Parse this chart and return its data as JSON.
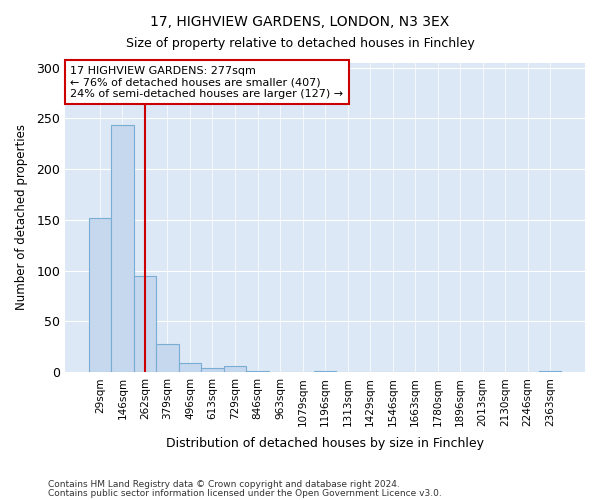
{
  "title1": "17, HIGHVIEW GARDENS, LONDON, N3 3EX",
  "title2": "Size of property relative to detached houses in Finchley",
  "xlabel": "Distribution of detached houses by size in Finchley",
  "ylabel": "Number of detached properties",
  "categories": [
    "29sqm",
    "146sqm",
    "262sqm",
    "379sqm",
    "496sqm",
    "613sqm",
    "729sqm",
    "846sqm",
    "963sqm",
    "1079sqm",
    "1196sqm",
    "1313sqm",
    "1429sqm",
    "1546sqm",
    "1663sqm",
    "1780sqm",
    "1896sqm",
    "2013sqm",
    "2130sqm",
    "2246sqm",
    "2363sqm"
  ],
  "values": [
    152,
    243,
    95,
    28,
    9,
    4,
    6,
    1,
    0,
    0,
    1,
    0,
    0,
    0,
    0,
    0,
    0,
    0,
    0,
    0,
    1
  ],
  "bar_color": "#c5d8ee",
  "bar_edge_color": "#7aadd4",
  "vline_x": 2.0,
  "vline_color": "#cc0000",
  "annotation_text": "17 HIGHVIEW GARDENS: 277sqm\n← 76% of detached houses are smaller (407)\n24% of semi-detached houses are larger (127) →",
  "annotation_box_color": "#cc0000",
  "ylim": [
    0,
    305
  ],
  "footnote1": "Contains HM Land Registry data © Crown copyright and database right 2024.",
  "footnote2": "Contains public sector information licensed under the Open Government Licence v3.0.",
  "fig_bg_color": "#ffffff",
  "plot_bg_color": "#dce8f5"
}
